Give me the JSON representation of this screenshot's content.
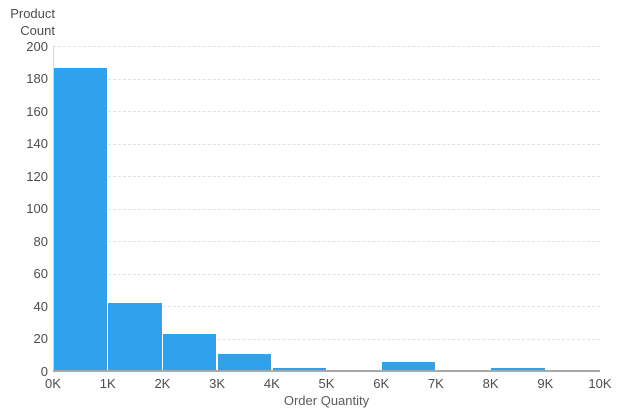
{
  "chart_data": {
    "type": "bar",
    "title": "",
    "xlabel": "Order Quantity",
    "ylabel": "Product Count",
    "categories": [
      "0K-1K",
      "1K-2K",
      "2K-3K",
      "3K-4K",
      "4K-5K",
      "5K-6K",
      "6K-7K",
      "7K-8K",
      "8K-9K",
      "9K-10K"
    ],
    "values": [
      186,
      41,
      22,
      10,
      1,
      0,
      5,
      0,
      1,
      0
    ],
    "x_tick_labels": [
      "0K",
      "1K",
      "2K",
      "3K",
      "4K",
      "5K",
      "6K",
      "7K",
      "8K",
      "9K",
      "10K"
    ],
    "y_ticks": [
      0,
      20,
      40,
      60,
      80,
      100,
      120,
      140,
      160,
      180,
      200
    ],
    "ylim": [
      0,
      200
    ],
    "xlim_labels": [
      "0K",
      "10K"
    ],
    "grid": "horizontal-dashed",
    "legend": "none"
  },
  "colors": {
    "bar": "#2FA2EE",
    "gridline": "#E1E1E1",
    "x_axis_line": "#A9A9A9",
    "y_axis_line": "#D6D6D6",
    "tick_text": "#4D4D4D",
    "title_text": "#5C5C5C",
    "background": "#FFFFFF"
  }
}
